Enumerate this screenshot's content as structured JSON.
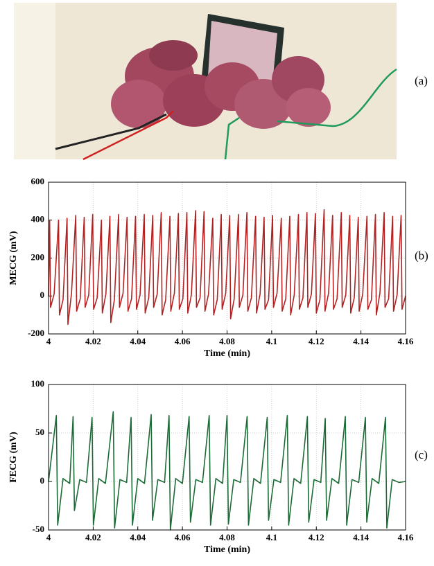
{
  "photo_label": "(a)",
  "chart_data": [
    {
      "type": "line",
      "panel_label": "(b)",
      "xlabel": "Time (min)",
      "ylabel": "MECG (mV)",
      "xlim": [
        4,
        4.16
      ],
      "xticks": [
        4,
        4.02,
        4.04,
        4.06,
        4.08,
        4.1,
        4.12,
        4.14,
        4.16
      ],
      "ylim": [
        -200,
        600
      ],
      "yticks": [
        -200,
        0,
        200,
        400,
        600
      ],
      "grid": true,
      "series": [
        {
          "color": "#b22222",
          "x": [
            4,
            4.0005,
            4.0009,
            4.0025,
            4.0045,
            4.0049,
            4.0065,
            4.0083,
            4.0087,
            4.0103,
            4.0122,
            4.0126,
            4.0142,
            4.016,
            4.0164,
            4.018,
            4.0198,
            4.0202,
            4.0218,
            4.0237,
            4.0241,
            4.0257,
            4.0275,
            4.0279,
            4.0295,
            4.0314,
            4.0318,
            4.0334,
            4.0352,
            4.0356,
            4.0372,
            4.039,
            4.0394,
            4.041,
            4.0429,
            4.0433,
            4.0449,
            4.0467,
            4.0471,
            4.0487,
            4.0505,
            4.0509,
            4.0525,
            4.0544,
            4.0548,
            4.0564,
            4.0582,
            4.0586,
            4.0602,
            4.062,
            4.0624,
            4.064,
            4.0659,
            4.0663,
            4.0679,
            4.0697,
            4.0701,
            4.0717,
            4.0736,
            4.074,
            4.0756,
            4.0774,
            4.0778,
            4.0794,
            4.0812,
            4.0816,
            4.0832,
            4.0851,
            4.0855,
            4.0871,
            4.0889,
            4.0893,
            4.0909,
            4.0928,
            4.0932,
            4.0948,
            4.0966,
            4.097,
            4.0986,
            4.1004,
            4.1008,
            4.1024,
            4.1043,
            4.1047,
            4.1063,
            4.1081,
            4.1085,
            4.1101,
            4.112,
            4.1124,
            4.114,
            4.1158,
            4.1162,
            4.1178,
            4.1196,
            4.12,
            4.1216,
            4.1235,
            4.1239,
            4.1255,
            4.1273,
            4.1277,
            4.1293,
            4.1312,
            4.1316,
            4.1332,
            4.135,
            4.1354,
            4.137,
            4.1388,
            4.1392,
            4.1408,
            4.1427,
            4.1431,
            4.1447,
            4.1465,
            4.1469,
            4.1485,
            4.1504,
            4.1508,
            4.1524,
            4.1542,
            4.1546,
            4.1562,
            4.158,
            4.1584,
            4.16
          ],
          "values": [
            0,
            400,
            -60,
            10,
            400,
            -100,
            -20,
            410,
            -150,
            15,
            425,
            -80,
            -15,
            415,
            -60,
            5,
            430,
            -70,
            -10,
            400,
            -90,
            10,
            420,
            -140,
            -20,
            430,
            -60,
            15,
            415,
            -80,
            -15,
            420,
            -70,
            5,
            430,
            -90,
            -10,
            425,
            -60,
            10,
            440,
            -100,
            -20,
            420,
            -80,
            15,
            435,
            -70,
            -15,
            440,
            -90,
            5,
            450,
            -60,
            -10,
            445,
            -80,
            10,
            410,
            -100,
            -20,
            430,
            -70,
            15,
            425,
            -120,
            -15,
            430,
            -60,
            5,
            440,
            -80,
            -10,
            420,
            -90,
            10,
            415,
            -70,
            -20,
            425,
            -60,
            15,
            410,
            -80,
            -15,
            420,
            -100,
            5,
            430,
            -70,
            -10,
            440,
            -60,
            10,
            435,
            -90,
            -20,
            455,
            -80,
            15,
            425,
            -70,
            -15,
            440,
            -60,
            5,
            425,
            -90,
            -10,
            415,
            -80,
            10,
            420,
            -70,
            -20,
            430,
            -100,
            15,
            440,
            -60,
            -15,
            420,
            -80,
            5,
            425,
            -70,
            0
          ]
        }
      ]
    },
    {
      "type": "line",
      "panel_label": "(c)",
      "xlabel": "Time (min)",
      "ylabel": "FECG (mV)",
      "xlim": [
        4,
        4.16
      ],
      "xticks": [
        4,
        4.02,
        4.04,
        4.06,
        4.08,
        4.1,
        4.12,
        4.14,
        4.16
      ],
      "ylim": [
        -50,
        100
      ],
      "yticks": [
        -50,
        0,
        50,
        100
      ],
      "grid": true,
      "series": [
        {
          "color": "#1a6b35",
          "x": [
            4,
            4.0035,
            4.0041,
            4.0065,
            4.0095,
            4.011,
            4.0116,
            4.014,
            4.017,
            4.0195,
            4.0201,
            4.0225,
            4.0255,
            4.029,
            4.0296,
            4.032,
            4.035,
            4.037,
            4.0376,
            4.04,
            4.043,
            4.046,
            4.0466,
            4.049,
            4.052,
            4.054,
            4.0546,
            4.057,
            4.06,
            4.063,
            4.0636,
            4.066,
            4.069,
            4.072,
            4.0726,
            4.075,
            4.078,
            4.08,
            4.0806,
            4.083,
            4.086,
            4.089,
            4.0896,
            4.092,
            4.095,
            4.098,
            4.0986,
            4.101,
            4.104,
            4.107,
            4.1076,
            4.11,
            4.113,
            4.116,
            4.1166,
            4.119,
            4.122,
            4.124,
            4.1246,
            4.127,
            4.13,
            4.133,
            4.1336,
            4.136,
            4.139,
            4.142,
            4.1426,
            4.145,
            4.148,
            4.151,
            4.1516,
            4.154,
            4.157,
            4.16
          ],
          "values": [
            0,
            68,
            -45,
            3,
            -2,
            67,
            -30,
            2,
            -1,
            66,
            -45,
            3,
            -2,
            72,
            -48,
            2,
            -1,
            66,
            -45,
            3,
            -2,
            69,
            -40,
            2,
            -1,
            68,
            -50,
            3,
            -2,
            67,
            -42,
            2,
            -1,
            68,
            -45,
            3,
            -2,
            68,
            -44,
            2,
            -1,
            67,
            -45,
            3,
            -2,
            66,
            -40,
            2,
            -1,
            68,
            -45,
            3,
            -2,
            67,
            -42,
            2,
            -1,
            65,
            -40,
            3,
            -2,
            67,
            -45,
            2,
            -1,
            66,
            -42,
            3,
            -2,
            66,
            -48,
            2,
            -1,
            0
          ]
        }
      ]
    }
  ]
}
